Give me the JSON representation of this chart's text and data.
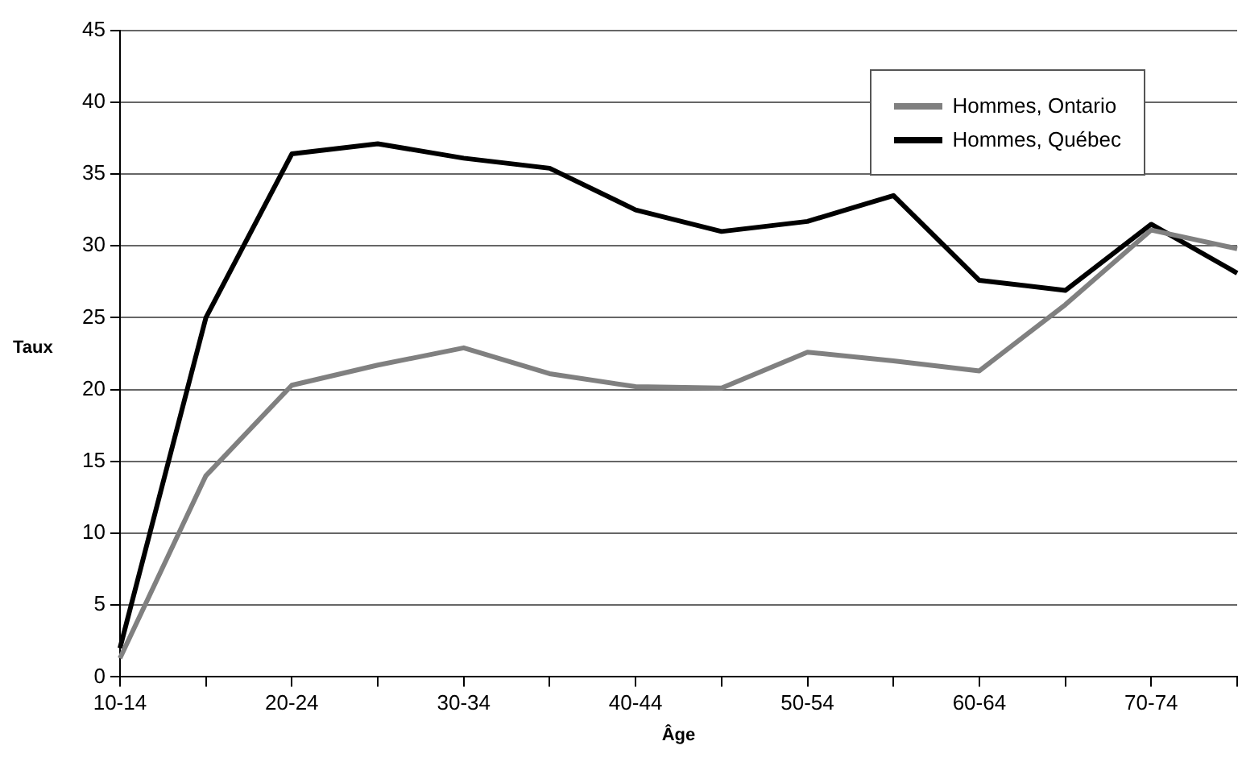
{
  "chart_data": {
    "type": "line",
    "xlabel": "Âge",
    "ylabel": "Taux",
    "categories": [
      "10-14",
      null,
      "20-24",
      null,
      "30-34",
      null,
      "40-44",
      null,
      "50-54",
      null,
      "60-64",
      null,
      "70-74",
      null
    ],
    "series": [
      {
        "name": "Hommes, Ontario",
        "color": "#808080",
        "values": [
          1.3,
          14.0,
          20.3,
          21.7,
          22.9,
          21.1,
          20.2,
          20.1,
          22.6,
          22.0,
          21.3,
          25.9,
          31.1,
          29.8
        ]
      },
      {
        "name": "Hommes, Québec",
        "color": "#000000",
        "values": [
          2.0,
          25.0,
          36.4,
          37.1,
          36.1,
          35.4,
          32.5,
          31.0,
          31.7,
          33.5,
          27.6,
          26.9,
          31.5,
          28.1
        ]
      }
    ],
    "ylim": [
      0,
      45
    ],
    "yticks": [
      0,
      5,
      10,
      15,
      20,
      25,
      30,
      35,
      40,
      45
    ],
    "grid": "y",
    "legend": "top right",
    "marker": "none",
    "line_style": "solid"
  }
}
